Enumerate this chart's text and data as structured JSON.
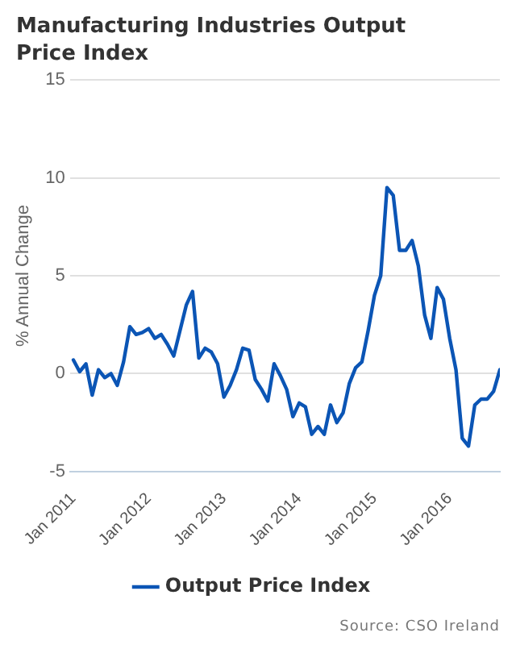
{
  "chart_data": {
    "type": "line",
    "title": "Manufacturing Industries Output Price Index",
    "ylabel": "% Annual Change",
    "x": [
      "2011-01",
      "2011-02",
      "2011-03",
      "2011-04",
      "2011-05",
      "2011-06",
      "2011-07",
      "2011-08",
      "2011-09",
      "2011-10",
      "2011-11",
      "2011-12",
      "2012-01",
      "2012-02",
      "2012-03",
      "2012-04",
      "2012-05",
      "2012-06",
      "2012-07",
      "2012-08",
      "2012-09",
      "2012-10",
      "2012-11",
      "2012-12",
      "2013-01",
      "2013-02",
      "2013-03",
      "2013-04",
      "2013-05",
      "2013-06",
      "2013-07",
      "2013-08",
      "2013-09",
      "2013-10",
      "2013-11",
      "2013-12",
      "2014-01",
      "2014-02",
      "2014-03",
      "2014-04",
      "2014-05",
      "2014-06",
      "2014-07",
      "2014-08",
      "2014-09",
      "2014-10",
      "2014-11",
      "2014-12",
      "2015-01",
      "2015-02",
      "2015-03",
      "2015-04",
      "2015-05",
      "2015-06",
      "2015-07",
      "2015-08",
      "2015-09",
      "2015-10",
      "2015-11",
      "2015-12",
      "2016-01",
      "2016-02",
      "2016-03",
      "2016-04",
      "2016-05",
      "2016-06",
      "2016-07",
      "2016-08",
      "2016-09"
    ],
    "series": [
      {
        "name": "Output Price Index",
        "color": "#0b55b5",
        "values": [
          0.7,
          0.1,
          0.5,
          -1.1,
          0.2,
          -0.2,
          0,
          -0.6,
          0.6,
          2.4,
          2.0,
          2.1,
          2.3,
          1.8,
          2.0,
          1.5,
          0.9,
          2.2,
          3.5,
          4.2,
          0.8,
          1.3,
          1.1,
          0.5,
          -1.2,
          -0.6,
          0.2,
          1.3,
          1.2,
          -0.3,
          -0.8,
          -1.4,
          0.5,
          -0.1,
          -0.8,
          -2.2,
          -1.5,
          -1.7,
          -3.1,
          -2.7,
          -3.1,
          -1.6,
          -2.5,
          -2.0,
          -0.5,
          0.3,
          0.6,
          2.2,
          4.0,
          5.0,
          9.5,
          9.1,
          6.3,
          6.3,
          6.8,
          5.5,
          3.0,
          1.8,
          4.4,
          3.8,
          1.8,
          0.2,
          -3.3,
          -3.7,
          -1.6,
          -1.3,
          -1.3,
          -0.9,
          0.2
        ]
      }
    ],
    "ylim": [
      -5,
      15
    ],
    "yticks": [
      -5,
      0,
      5,
      10,
      15
    ],
    "xlim": [
      "2010-12-15",
      "2016-09"
    ],
    "xticks": [
      {
        "value": "2011-01",
        "label": "Jan 2011"
      },
      {
        "value": "2012-01",
        "label": "Jan 2012"
      },
      {
        "value": "2013-01",
        "label": "Jan 2013"
      },
      {
        "value": "2014-01",
        "label": "Jan 2014"
      },
      {
        "value": "2015-01",
        "label": "Jan 2015"
      },
      {
        "value": "2016-01",
        "label": "Jan 2016"
      }
    ],
    "grid": "y",
    "legend": "bottom",
    "marker": "none",
    "line_style": "solid",
    "annotations": [
      "Source: CSO Ireland"
    ]
  }
}
